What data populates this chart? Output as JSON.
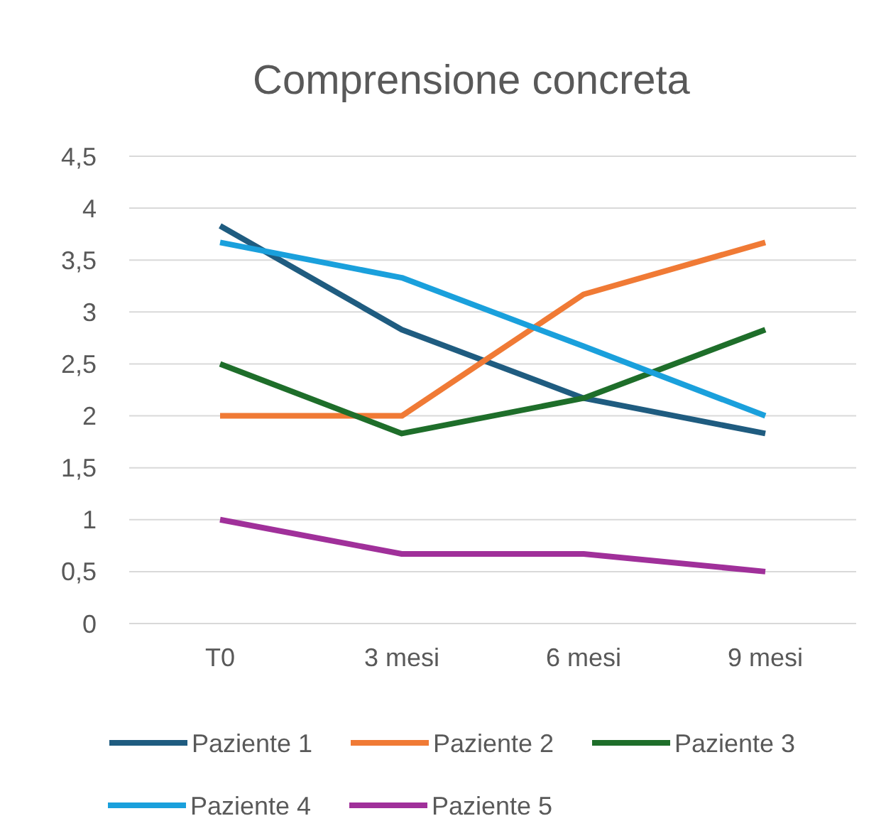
{
  "chart_data": {
    "type": "line",
    "title": "Comprensione concreta",
    "categories": [
      "T0",
      "3 mesi",
      "6 mesi",
      "9 mesi"
    ],
    "series": [
      {
        "name": "Paziente 1",
        "color": "#1f5c80",
        "values": [
          3.83,
          2.83,
          2.17,
          1.83
        ]
      },
      {
        "name": "Paziente 2",
        "color": "#f07a35",
        "values": [
          2,
          2,
          3.17,
          3.67
        ]
      },
      {
        "name": "Paziente 3",
        "color": "#1e6e2a",
        "values": [
          2.5,
          1.83,
          2.17,
          2.83
        ]
      },
      {
        "name": "Paziente 4",
        "color": "#1aa0dc",
        "values": [
          3.67,
          3.33,
          2.67,
          2
        ]
      },
      {
        "name": "Paziente 5",
        "color": "#a0309a",
        "values": [
          1,
          0.67,
          0.67,
          0.5
        ]
      }
    ],
    "ylim": [
      0,
      4.5
    ],
    "yticks": [
      0,
      {
        "value": 0.5,
        "label": "0,5"
      },
      1,
      {
        "value": 1.5,
        "label": "1,5"
      },
      2,
      {
        "value": 2.5,
        "label": "2,5"
      },
      3,
      {
        "value": 3.5,
        "label": "3,5"
      },
      4,
      {
        "value": 4.5,
        "label": "4,5"
      }
    ],
    "grid": "y",
    "legend": "bottom",
    "marker": "none",
    "line_style": "solid"
  }
}
